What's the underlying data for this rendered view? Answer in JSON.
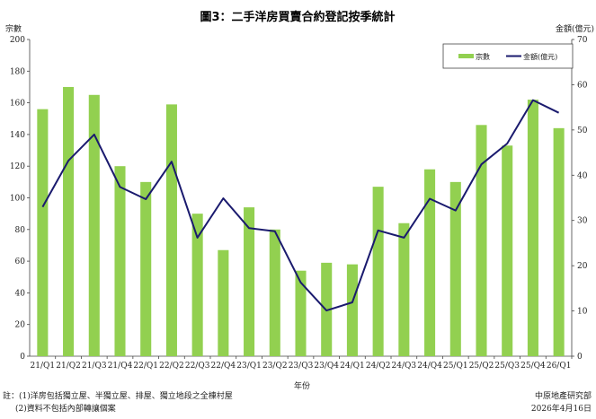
{
  "chart_data": {
    "type": "bar",
    "title": "圖3：二手洋房買賣合約登記按季統計",
    "y_left_label": "宗數",
    "y_right_label": "金額(億元)",
    "x_label": "年份",
    "categories": [
      "21/Q1",
      "21/Q2",
      "21/Q3",
      "21/Q4",
      "22/Q1",
      "22/Q2",
      "22/Q3",
      "22/Q4",
      "23/Q1",
      "23/Q2",
      "23/Q3",
      "23/Q4",
      "24/Q1",
      "24/Q2",
      "24/Q3",
      "24/Q4",
      "25/Q1",
      "25/Q2",
      "25/Q3",
      "25/Q4",
      "26/Q1"
    ],
    "ylim_left": [
      0,
      200
    ],
    "yticks_left": [
      "0",
      "20",
      "40",
      "60",
      "80",
      "100",
      "120",
      "140",
      "160",
      "180",
      "200"
    ],
    "ylim_right": [
      0,
      70
    ],
    "yticks_right": [
      "0",
      "10",
      "20",
      "30",
      "40",
      "50",
      "60",
      "70"
    ],
    "legend_position": "top-right",
    "grid": false,
    "series": [
      {
        "name": "宗數",
        "kind": "bar",
        "axis": "left",
        "color": "#92d050",
        "values": [
          156,
          170,
          165,
          120,
          110,
          159,
          90,
          67,
          94,
          80,
          54,
          59,
          58,
          107,
          84,
          118,
          110,
          146,
          133,
          162,
          144
        ]
      },
      {
        "name": "金額(億元)",
        "kind": "line",
        "axis": "right",
        "color": "#1a1a6e",
        "values": [
          33.0,
          43.2,
          49.0,
          37.4,
          34.7,
          43.0,
          26.2,
          34.9,
          28.3,
          27.6,
          16.3,
          10.1,
          11.9,
          27.8,
          26.2,
          34.8,
          32.2,
          42.4,
          47.0,
          56.6,
          53.8
        ]
      }
    ]
  },
  "footer": {
    "note_line1": "註：(1)洋房包括獨立屋、半獨立屋、排屋、獨立地段之全棟村屋",
    "note_line2": "(2)資料不包括內部轉讓個案",
    "source": "中原地產研究部",
    "date": "2026年4月16日"
  }
}
